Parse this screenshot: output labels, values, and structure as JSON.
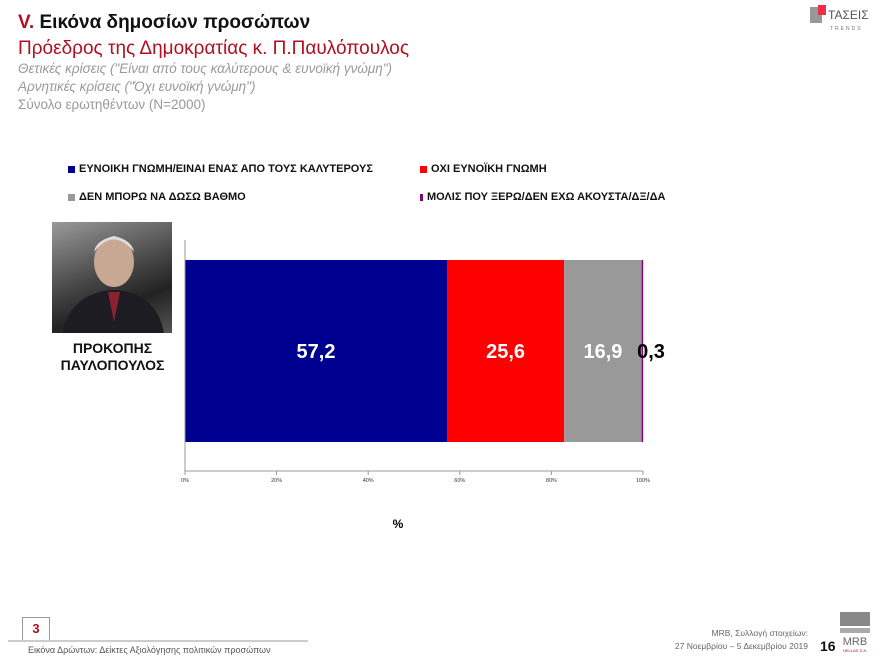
{
  "header": {
    "section_num": "V.",
    "title": "Εικόνα δημοσίων προσώπων",
    "subtitle": "Πρόεδρος της Δημοκρατίας κ. Π.Παυλόπουλος",
    "notes": [
      "Θετικές κρίσεις (\"Είναι από τους καλύτερους & ευνοϊκή γνώμη\")",
      "Αρνητικές κρίσεις (\"Όχι ευνοϊκή γνώμη\")",
      "Σύνολο ερωτηθέντων (N=2000)"
    ]
  },
  "logo": {
    "text": "ΤΑΣΕΙΣ",
    "sub": "TRENDS"
  },
  "chart_data": {
    "type": "bar",
    "orientation": "horizontal",
    "stacked": true,
    "categories": [
      "ΠΡΟΚΟΠΗΣ ΠΑΥΛΟΠΟΥΛΟΣ"
    ],
    "category_lines": [
      "ΠΡΟΚΟΠΗΣ",
      "ΠΑΥΛΟΠΟΥΛΟΣ"
    ],
    "series": [
      {
        "name": "ΕΥΝΟΙΚΗ ΓΝΩΜΗ/ΕΙΝΑΙ ΕΝΑΣ ΑΠΟ ΤΟΥΣ ΚΑΛΥΤΕΡΟΥΣ",
        "values": [
          57.2
        ],
        "label": "57,2",
        "color": "#000090"
      },
      {
        "name": "ΟΧΙ ΕΥΝΟΪΚΗ ΓΝΩΜΗ",
        "values": [
          25.6
        ],
        "label": "25,6",
        "color": "#ff0000"
      },
      {
        "name": "ΔΕΝ ΜΠΟΡΩ ΝΑ ΔΩΣΩ ΒΑΘΜΟ",
        "values": [
          16.9
        ],
        "label": "16,9",
        "color": "#999999"
      },
      {
        "name": "ΜΟΛΙΣ ΠΟΥ ΞΕΡΩ/ΔΕΝ ΕΧΩ ΑΚΟΥΣΤΑ/ΔΞ/ΔΑ",
        "values": [
          0.3
        ],
        "label": "0,3",
        "color": "#800080"
      }
    ],
    "xlim": [
      0,
      100
    ],
    "xticks": [
      "0%",
      "20%",
      "40%",
      "60%",
      "80%",
      "100%"
    ],
    "xlabel": "%",
    "legend": "top"
  },
  "footer": {
    "box_num": "3",
    "left": "Εικόνα Δρώντων: Δείκτες Αξιολόγησης πολιτικών προσώπων",
    "right1": "MRB, Συλλογή στοιχείων:",
    "right2": "27 Νοεμβρίου – 5 Δεκεμβρίου 2019",
    "page": "16",
    "mrb": "MRB",
    "mrb_sub": "HELLAS S.A."
  }
}
